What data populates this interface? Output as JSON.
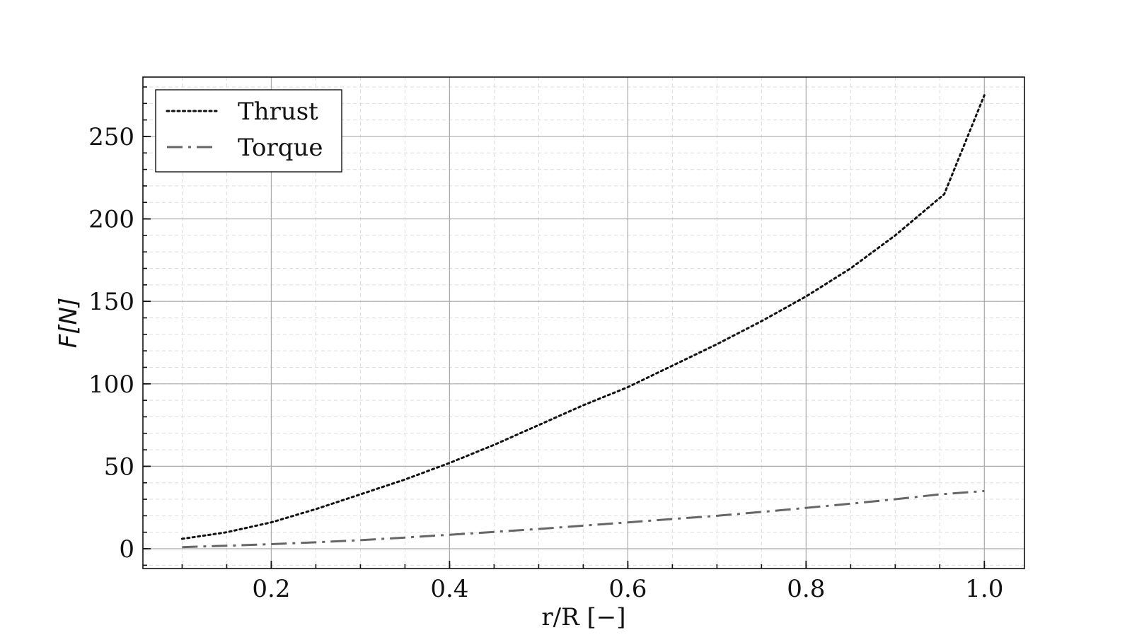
{
  "chart_data": {
    "type": "line",
    "title": "",
    "xlabel": "r/R  [−]",
    "ylabel_prefix": "F",
    "ylabel_unit": "[N]",
    "xlim": [
      0.056,
      1.045
    ],
    "ylim": [
      -12,
      286
    ],
    "x_ticks": [
      0.2,
      0.4,
      0.6,
      0.8,
      1.0
    ],
    "x_tick_labels": [
      "0.2",
      "0.4",
      "0.6",
      "0.8",
      "1.0"
    ],
    "x_minor_step": 0.05,
    "y_ticks": [
      0,
      50,
      100,
      150,
      200,
      250
    ],
    "y_tick_labels": [
      "0",
      "50",
      "100",
      "150",
      "200",
      "250"
    ],
    "y_minor_step": 10,
    "grid": true,
    "minor_grid": true,
    "legend_position": "top-left",
    "series": [
      {
        "name": "Thrust",
        "style": "dotted",
        "color": "#111111",
        "x": [
          0.1,
          0.15,
          0.2,
          0.25,
          0.3,
          0.35,
          0.4,
          0.45,
          0.5,
          0.55,
          0.6,
          0.65,
          0.7,
          0.75,
          0.8,
          0.85,
          0.9,
          0.955,
          1.0
        ],
        "y": [
          6,
          10,
          16,
          24,
          33,
          42,
          52,
          63,
          75,
          87,
          98,
          111,
          124,
          138,
          153,
          170,
          190,
          215,
          275
        ]
      },
      {
        "name": "Torque",
        "style": "dashdot",
        "color": "#666666",
        "x": [
          0.1,
          0.15,
          0.2,
          0.25,
          0.3,
          0.35,
          0.4,
          0.45,
          0.5,
          0.55,
          0.6,
          0.65,
          0.7,
          0.75,
          0.8,
          0.85,
          0.9,
          0.95,
          1.0
        ],
        "y": [
          1,
          1.8,
          2.8,
          3.9,
          5.2,
          6.8,
          8.5,
          10.2,
          12,
          14,
          16,
          18,
          20,
          22.3,
          24.8,
          27.3,
          30,
          33,
          35
        ]
      }
    ]
  }
}
